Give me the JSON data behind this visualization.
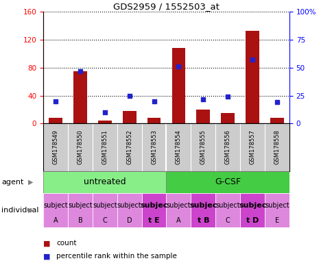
{
  "title": "GDS2959 / 1552503_at",
  "samples": [
    "GSM178549",
    "GSM178550",
    "GSM178551",
    "GSM178552",
    "GSM178553",
    "GSM178554",
    "GSM178555",
    "GSM178556",
    "GSM178557",
    "GSM178558"
  ],
  "counts": [
    8,
    75,
    4,
    18,
    8,
    108,
    20,
    15,
    133,
    8
  ],
  "percentile_ranks": [
    20,
    47,
    10,
    25,
    20,
    51,
    22,
    24,
    57,
    19
  ],
  "individual_labels_line1": [
    "subject",
    "subject",
    "subject",
    "subject",
    "subjec",
    "subject",
    "subjec",
    "subject",
    "subjec",
    "subject"
  ],
  "individual_labels_line2": [
    "A",
    "B",
    "C",
    "D",
    "t E",
    "A",
    "t B",
    "C",
    "t D",
    "E"
  ],
  "individual_highlight": [
    false,
    false,
    false,
    false,
    true,
    false,
    true,
    false,
    true,
    false
  ],
  "individual_color_normal": "#dd88dd",
  "individual_color_highlight": "#cc44cc",
  "bar_color": "#aa1111",
  "dot_color": "#2222cc",
  "xlim": [
    -0.5,
    9.5
  ],
  "ylim_left": [
    0,
    160
  ],
  "yticks_left": [
    0,
    40,
    80,
    120,
    160
  ],
  "ytick_labels_left": [
    "0",
    "40",
    "80",
    "120",
    "160"
  ],
  "yticks_right": [
    0,
    25,
    50,
    75,
    100
  ],
  "ytick_labels_right": [
    "0",
    "25",
    "50",
    "75",
    "100%"
  ],
  "xlabel_area_color": "#cccccc",
  "agent_groups": [
    {
      "label": "untreated",
      "x_start": 0,
      "x_end": 4,
      "color": "#88ee88"
    },
    {
      "label": "G-CSF",
      "x_start": 5,
      "x_end": 9,
      "color": "#44cc44"
    }
  ],
  "agent_row_label": "agent",
  "individual_row_label": "individual",
  "legend_count_label": "count",
  "legend_pct_label": "percentile rank within the sample",
  "fig_width": 4.85,
  "fig_height": 3.84,
  "dpi": 100
}
